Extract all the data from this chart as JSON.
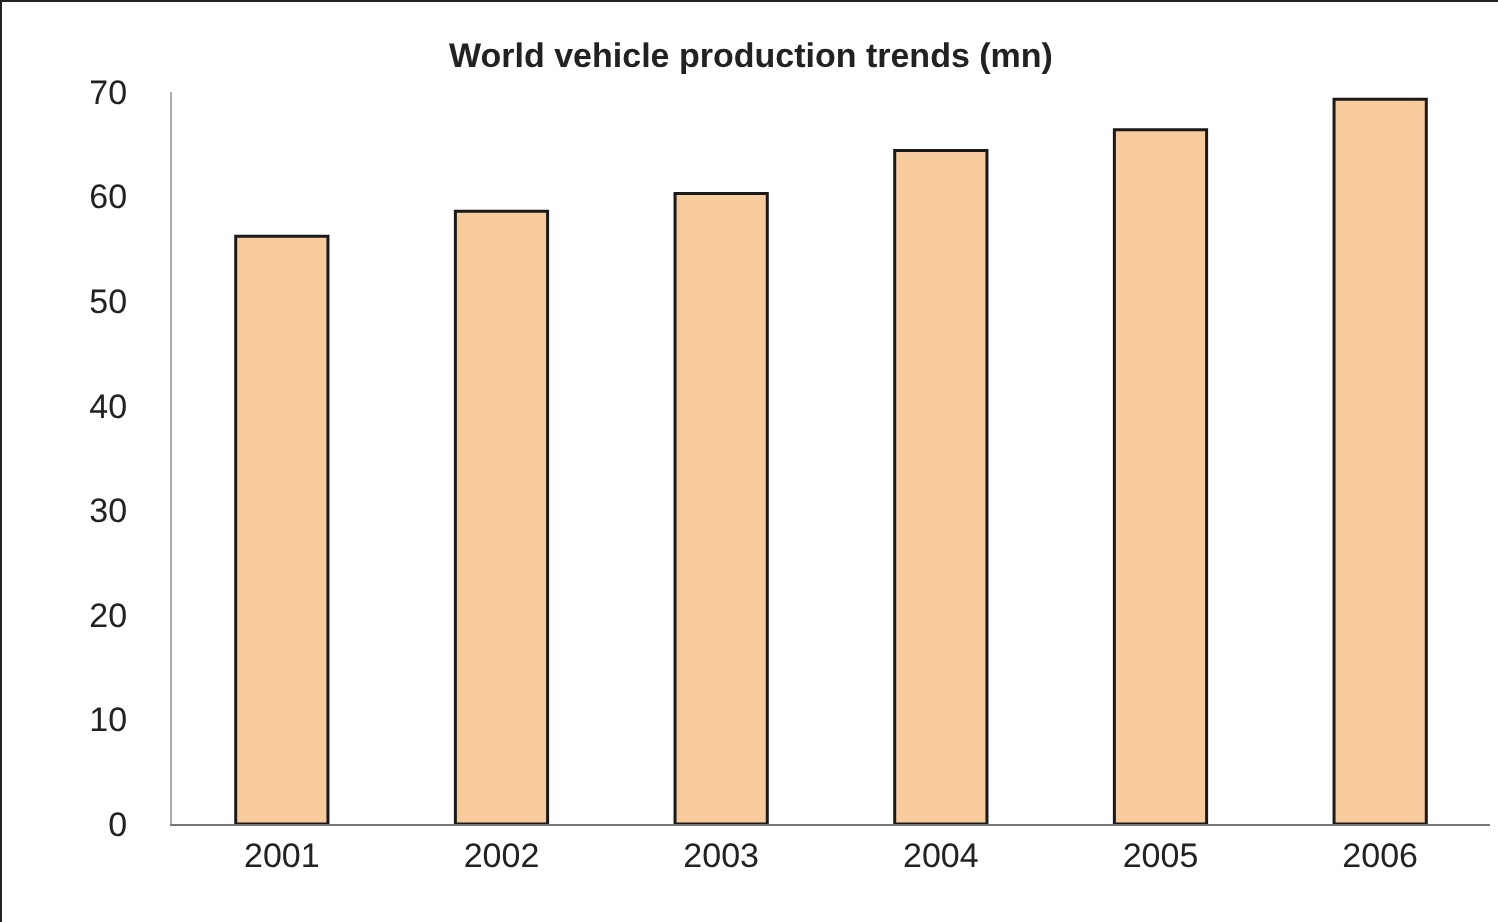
{
  "chart_data": {
    "type": "bar",
    "title": "World vehicle production trends (mn)",
    "categories": [
      "2001",
      "2002",
      "2003",
      "2004",
      "2005",
      "2006"
    ],
    "values": [
      56.2,
      58.6,
      60.3,
      64.4,
      66.4,
      69.3
    ],
    "color": "#f7cb9b",
    "ylim": [
      0,
      70
    ],
    "yticks": [
      0,
      10,
      20,
      30,
      40,
      50,
      60,
      70
    ],
    "grid": false
  }
}
